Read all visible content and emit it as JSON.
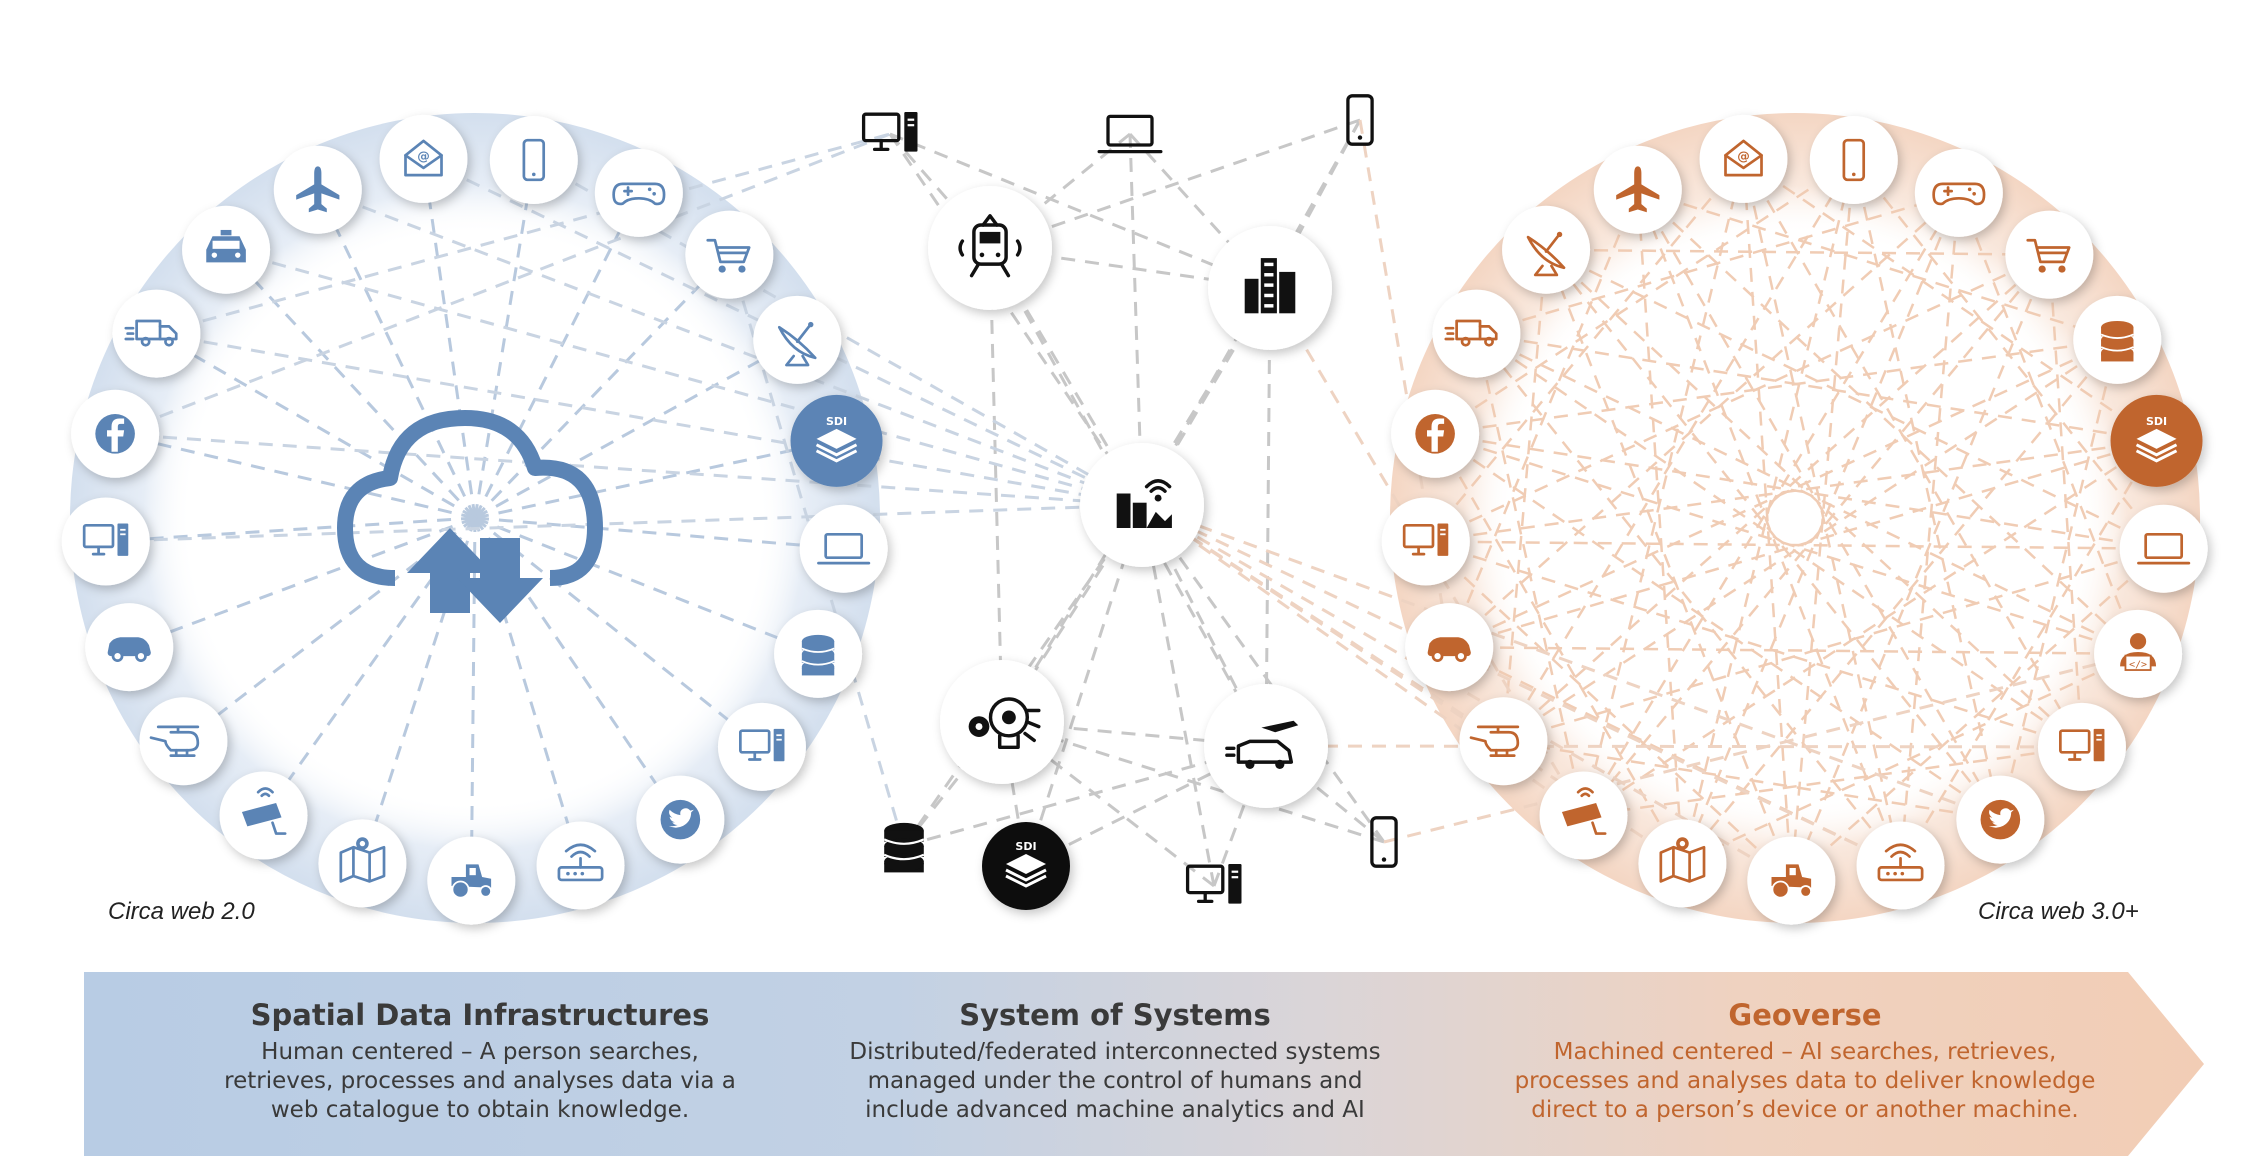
{
  "captions": {
    "left": "Circa web 2.0",
    "right": "Circa web 3.0+"
  },
  "bands": {
    "left": {
      "title": "Spatial Data Infrastructures",
      "text": "Human centered – A person searches,\nretrieves, processes and analyses data via a\nweb catalogue to obtain knowledge."
    },
    "middle": {
      "title": "System of Systems",
      "text": "Distributed/federated interconnected systems\nmanaged under the control of humans and\ninclude advanced machine analytics and AI"
    },
    "right": {
      "title": "Geoverse",
      "text": "Machined centered – AI searches, retrieves,\nprocesses and analyses data to deliver knowledge\ndirect to a person’s device or another machine."
    }
  },
  "badges": {
    "sdi": "SDI"
  },
  "colors": {
    "blue": "#5b84b5",
    "orange": "#c0652e",
    "black": "#111111",
    "blue_ring": "#dbe5f1",
    "orange_ring": "#f7e1d3"
  },
  "ring_icons_left": [
    "helicopter-icon",
    "car-icon",
    "computer-icon",
    "facebook-icon",
    "truck-icon",
    "taxi-icon",
    "airplane-icon",
    "email-icon",
    "mobile-phone-icon",
    "gamepad-icon",
    "shopping-cart-icon",
    "satellite-dish-icon",
    "sdi-layers-icon",
    "laptop-icon",
    "database-icon",
    "computer-icon",
    "twitter-icon",
    "router-icon",
    "tractor-icon",
    "map-pin-icon",
    "cctv-camera-icon"
  ],
  "ring_icons_right": [
    "helicopter-icon",
    "car-icon",
    "computer-icon",
    "facebook-icon",
    "truck-icon",
    "satellite-dish-icon",
    "airplane-icon",
    "email-icon",
    "mobile-phone-icon",
    "gamepad-icon",
    "shopping-cart-icon",
    "database-icon",
    "sdi-layers-icon",
    "laptop-icon",
    "coder-icon",
    "computer-icon",
    "twitter-icon",
    "router-icon",
    "tractor-icon",
    "map-pin-icon",
    "cctv-camera-icon"
  ],
  "middle_nodes": [
    "train-icon",
    "city-buildings-icon",
    "smart-city-icon",
    "ai-brain-gears-icon",
    "transport-plane-van-icon"
  ],
  "middle_outer_devices": [
    "desktop-computer-icon",
    "laptop-icon",
    "mobile-phone-icon",
    "database-icon",
    "sdi-layers-icon",
    "desktop-computer-icon",
    "mobile-phone-icon"
  ],
  "center_icon": "cloud-upload-download-icon"
}
